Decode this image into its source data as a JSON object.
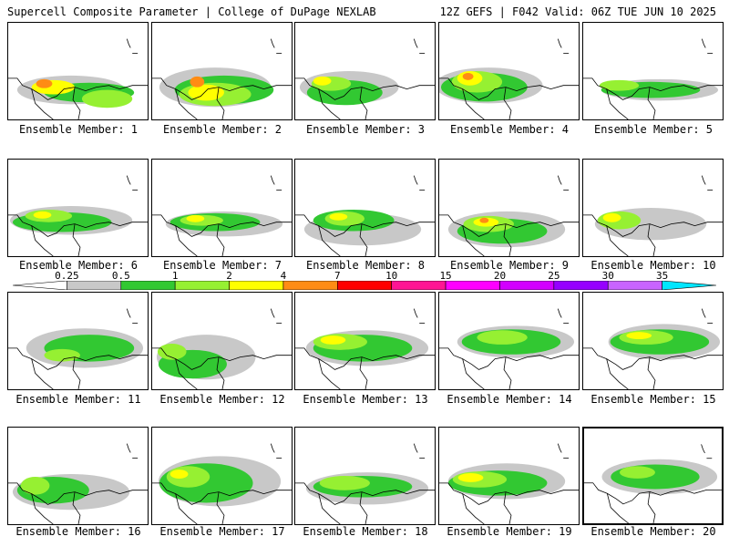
{
  "header": {
    "title": "Supercell Composite Parameter | College of DuPage NEXLAB",
    "info": "12Z GEFS | F042 Valid: 06Z TUE JUN 10 2025"
  },
  "legend": {
    "labels": [
      "0.25",
      "0.5",
      "1",
      "2",
      "4",
      "7",
      "10",
      "15",
      "20",
      "25",
      "30",
      "35"
    ],
    "colors": [
      "#ffffff",
      "#c8c8c8",
      "#32c832",
      "#96f032",
      "#ffff00",
      "#ff8c14",
      "#ff0000",
      "#ff1493",
      "#ff00ff",
      "#d200ff",
      "#9600ff",
      "#c864ff",
      "#00e6ff"
    ]
  },
  "panels": [
    {
      "label": "Ensemble Member: 1"
    },
    {
      "label": "Ensemble Member: 2"
    },
    {
      "label": "Ensemble Member: 3"
    },
    {
      "label": "Ensemble Member: 4"
    },
    {
      "label": "Ensemble Member: 5"
    },
    {
      "label": "Ensemble Member: 6"
    },
    {
      "label": "Ensemble Member: 7"
    },
    {
      "label": "Ensemble Member: 8"
    },
    {
      "label": "Ensemble Member: 9"
    },
    {
      "label": "Ensemble Member: 10"
    },
    {
      "label": "Ensemble Member: 11"
    },
    {
      "label": "Ensemble Member: 12"
    },
    {
      "label": "Ensemble Member: 13"
    },
    {
      "label": "Ensemble Member: 14"
    },
    {
      "label": "Ensemble Member: 15"
    },
    {
      "label": "Ensemble Member: 16"
    },
    {
      "label": "Ensemble Member: 17"
    },
    {
      "label": "Ensemble Member: 18"
    },
    {
      "label": "Ensemble Member: 19"
    },
    {
      "label": "Ensemble Member: 20"
    }
  ]
}
